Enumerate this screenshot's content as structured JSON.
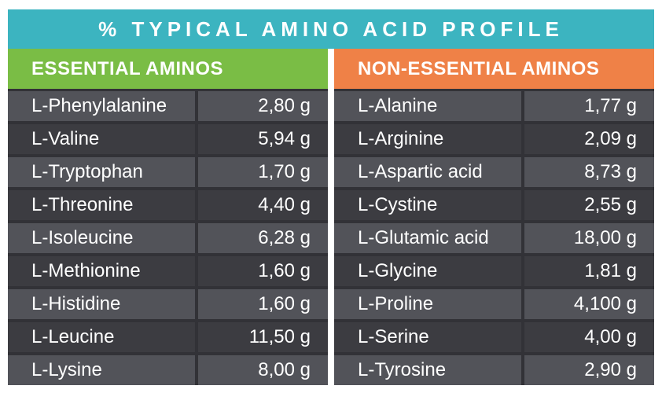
{
  "title": "% TYPICAL AMINO ACID PROFILE",
  "colors": {
    "teal": "#3cb4c0",
    "green": "#7abd45",
    "orange": "#ef8147",
    "row_light": "#525359",
    "row_dark": "#3c3c41",
    "grid_line": "#323237",
    "text": "#ffffff",
    "background": "#ffffff"
  },
  "chart_data": {
    "type": "table",
    "title": "% TYPICAL AMINO ACID PROFILE",
    "unit": "g",
    "columns": [
      {
        "header": "ESSENTIAL AMINOS",
        "accent_color": "#7abd45",
        "rows": [
          {
            "name": "L-Phenylalanine",
            "value": "2,80 g"
          },
          {
            "name": "L-Valine",
            "value": "5,94 g"
          },
          {
            "name": "L-Tryptophan",
            "value": "1,70 g"
          },
          {
            "name": "L-Threonine",
            "value": "4,40 g"
          },
          {
            "name": "L-Isoleucine",
            "value": "6,28 g"
          },
          {
            "name": "L-Methionine",
            "value": "1,60 g"
          },
          {
            "name": "L-Histidine",
            "value": "1,60 g"
          },
          {
            "name": "L-Leucine",
            "value": "11,50 g"
          },
          {
            "name": "L-Lysine",
            "value": "8,00 g"
          }
        ]
      },
      {
        "header": "NON-ESSENTIAL AMINOS",
        "accent_color": "#ef8147",
        "rows": [
          {
            "name": "L-Alanine",
            "value": "1,77 g"
          },
          {
            "name": "L-Arginine",
            "value": "2,09 g"
          },
          {
            "name": "L-Aspartic acid",
            "value": "8,73 g"
          },
          {
            "name": "L-Cystine",
            "value": "2,55 g"
          },
          {
            "name": "L-Glutamic acid",
            "value": "18,00 g"
          },
          {
            "name": "L-Glycine",
            "value": "1,81 g"
          },
          {
            "name": "L-Proline",
            "value": "4,100 g"
          },
          {
            "name": "L-Serine",
            "value": "4,00 g"
          },
          {
            "name": "L-Tyrosine",
            "value": "2,90 g"
          }
        ]
      }
    ]
  }
}
